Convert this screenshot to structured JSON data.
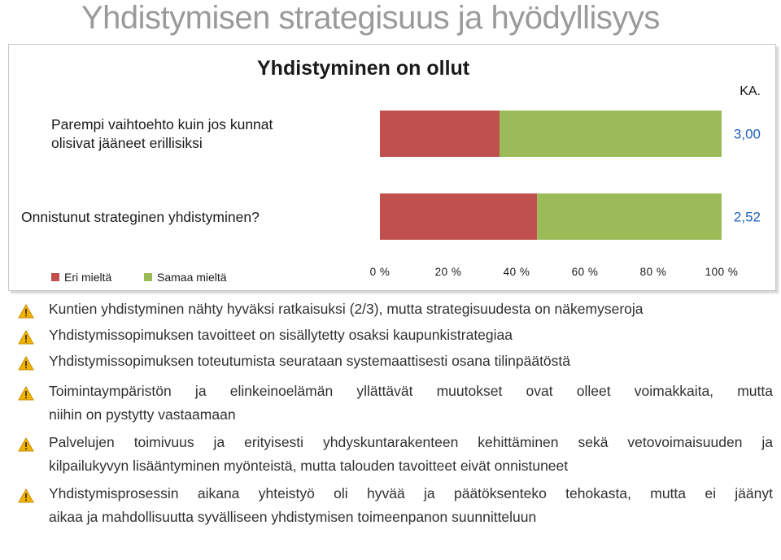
{
  "slide_title": "Yhdistymisen strategisuus ja hyödyllisyys",
  "chart_data": {
    "type": "bar",
    "orientation": "horizontal",
    "stacked": true,
    "title": "Yhdistyminen on ollut",
    "categories": [
      "Parempi vaihtoehto kuin jos kunnat olisivat jääneet erillisiksi",
      "Onnistunut strateginen yhdistyminen?"
    ],
    "category_lines": [
      [
        "Parempi vaihtoehto kuin jos kunnat",
        "olisivat jääneet erillisiksi"
      ],
      [
        "Onnistunut strateginen yhdistyminen?"
      ]
    ],
    "series": [
      {
        "name": "Eri mieltä",
        "color": "#c0504d",
        "values": [
          35,
          46
        ]
      },
      {
        "name": "Samaa mieltä",
        "color": "#9bbb59",
        "values": [
          65,
          54
        ]
      }
    ],
    "xlim": [
      0,
      100
    ],
    "x_ticks": [
      "0 %",
      "20 %",
      "40 %",
      "60 %",
      "80 %",
      "100 %"
    ],
    "ka_header": "KA.",
    "ka_values": [
      "3,00",
      "2,52"
    ],
    "ka_color": "#1f5fbf",
    "legend_position": "bottom-left",
    "grid": false
  },
  "bullets": [
    {
      "icon": "warning-icon",
      "lines": [
        "Kuntien yhdistyminen nähty hyväksi ratkaisuksi (2/3), mutta strategisuudesta on näkemyseroja"
      ]
    },
    {
      "icon": "warning-icon",
      "lines": [
        "Yhdistymissopimuksen tavoitteet on sisällytetty osaksi kaupunkistrategiaa"
      ]
    },
    {
      "icon": "warning-icon",
      "lines": [
        "Yhdistymissopimuksen toteutumista seurataan systemaattisesti osana tilinpäätöstä"
      ]
    },
    {
      "icon": "warning-icon",
      "lines": [
        "Toimintaympäristön ja elinkeinoelämän yllättävät muutokset ovat olleet voimakkaita, mutta",
        "niihin on pystytty vastaamaan"
      ]
    },
    {
      "icon": "warning-icon",
      "lines": [
        "Palvelujen toimivuus ja erityisesti yhdyskuntarakenteen kehittäminen sekä vetovoimaisuuden ja",
        "kilpailukyvyn lisääntyminen myönteistä, mutta talouden tavoitteet eivät onnistuneet"
      ]
    },
    {
      "icon": "warning-icon",
      "lines": [
        "Yhdistymisprosessin aikana yhteistyö oli hyvää  ja päätöksenteko tehokasta, mutta ei jäänyt",
        "aikaa ja mahdollisuutta syvälliseen yhdistymisen toimeenpanon suunnitteluun"
      ]
    }
  ]
}
